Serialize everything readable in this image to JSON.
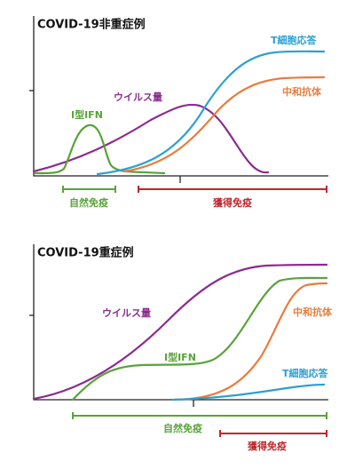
{
  "panels": [
    {
      "title": "COVID-19非重症例",
      "curves": {
        "t_cell": "T細胞応答",
        "antibody": "中和抗体",
        "virus": "ウイルス量",
        "ifn": "I型IFN"
      },
      "phases": {
        "innate": "自然免疫",
        "adaptive": "獲得免疫"
      }
    },
    {
      "title": "COVID-19重症例",
      "curves": {
        "virus": "ウイルス量",
        "ifn": "I型IFN",
        "antibody": "中和抗体",
        "t_cell": "T細胞応答"
      },
      "phases": {
        "innate": "自然免疫",
        "adaptive": "獲得免疫"
      }
    }
  ]
}
